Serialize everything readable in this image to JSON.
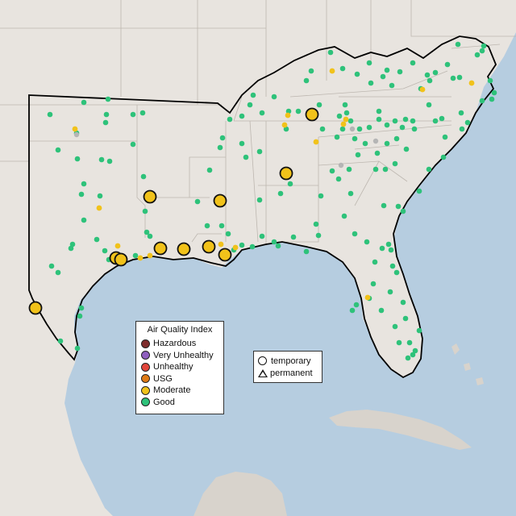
{
  "map": {
    "colors": {
      "water": "#b6cde0",
      "land": "#e8e4df",
      "land_dark": "#d8d3cc",
      "state_lines": "#bdb7b0",
      "region_border": "#000000"
    }
  },
  "legend": {
    "title": "Air Quality Index",
    "items": [
      {
        "label": "Hazardous",
        "color": "#7e2b2b"
      },
      {
        "label": "Very Unhealthy",
        "color": "#8f5fbf"
      },
      {
        "label": "Unhealthy",
        "color": "#e2463c"
      },
      {
        "label": "USG",
        "color": "#e07b16"
      },
      {
        "label": "Moderate",
        "color": "#f1c21a"
      },
      {
        "label": "Good",
        "color": "#2ec27a"
      }
    ]
  },
  "shape_legend": {
    "items": [
      {
        "label": "temporary",
        "icon": "circle-icon"
      },
      {
        "label": "permanent",
        "icon": "triangle-icon"
      }
    ]
  },
  "stations": {
    "good_color": "#2ec27a",
    "moderate_color": "#f1c21a",
    "gray_color": "#b5b5b5"
  }
}
